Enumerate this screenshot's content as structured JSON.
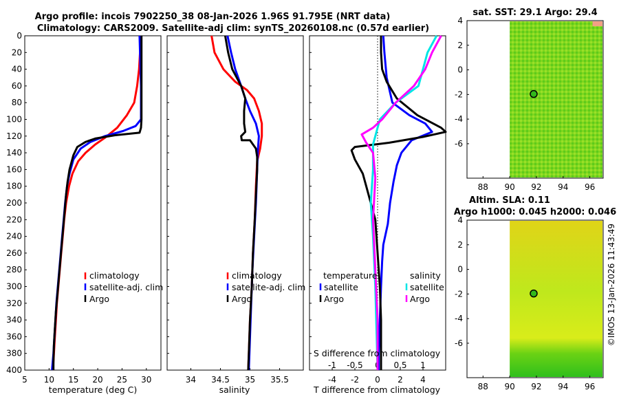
{
  "figure": {
    "title_line1": "Argo profile: incois 7902250_38 08-Jan-2026 1.96S 91.795E (NRT data)",
    "title_line2": "Climatology: CARS2009. Satellite-adj clim: synTS_20260108.nc (0.57d earlier)",
    "copyright": "©IMOS 13-Jan-2026 11:43:49",
    "colors": {
      "climatology": "#ff0000",
      "satellite": "#0000ff",
      "argo": "#000000",
      "satellite_s": "#00e5e5",
      "argo_s": "#ff00ff"
    }
  },
  "chart_data": [
    {
      "type": "line",
      "name": "temperature-profile",
      "xlabel": "temperature (deg C)",
      "ylabel": "",
      "xlim": [
        5,
        33
      ],
      "ylim": [
        400,
        0
      ],
      "xticks": [
        5,
        10,
        15,
        20,
        25,
        30
      ],
      "yticks": [
        0,
        20,
        40,
        60,
        80,
        100,
        120,
        140,
        160,
        180,
        200,
        220,
        240,
        260,
        280,
        300,
        320,
        340,
        360,
        380,
        400
      ],
      "legend": [
        "climatology",
        "satellite-adj. clim",
        "Argo"
      ],
      "series": [
        {
          "name": "climatology",
          "color": "#ff0000",
          "points": [
            [
              28.8,
              0
            ],
            [
              28.7,
              20
            ],
            [
              28.5,
              40
            ],
            [
              28.1,
              60
            ],
            [
              27.5,
              80
            ],
            [
              26.0,
              95
            ],
            [
              24.0,
              110
            ],
            [
              21.5,
              122
            ],
            [
              19.5,
              130
            ],
            [
              17.5,
              140
            ],
            [
              16.0,
              150
            ],
            [
              14.8,
              165
            ],
            [
              14.1,
              180
            ],
            [
              13.5,
              200
            ],
            [
              13.1,
              220
            ],
            [
              12.8,
              240
            ],
            [
              12.5,
              260
            ],
            [
              12.2,
              280
            ],
            [
              11.9,
              300
            ],
            [
              11.6,
              320
            ],
            [
              11.4,
              340
            ],
            [
              11.2,
              360
            ],
            [
              11.0,
              380
            ],
            [
              10.8,
              400
            ]
          ]
        },
        {
          "name": "satellite-adj. clim",
          "color": "#0000ff",
          "points": [
            [
              28.6,
              0
            ],
            [
              28.7,
              20
            ],
            [
              28.8,
              40
            ],
            [
              28.9,
              60
            ],
            [
              28.9,
              80
            ],
            [
              28.9,
              100
            ],
            [
              27.8,
              108
            ],
            [
              25.2,
              114
            ],
            [
              21.5,
              120
            ],
            [
              18.5,
              127
            ],
            [
              16.5,
              135
            ],
            [
              15.0,
              148
            ],
            [
              14.2,
              165
            ],
            [
              13.7,
              180
            ],
            [
              13.3,
              200
            ],
            [
              13.0,
              220
            ],
            [
              12.7,
              240
            ],
            [
              12.4,
              260
            ],
            [
              12.1,
              280
            ],
            [
              11.8,
              300
            ],
            [
              11.5,
              320
            ],
            [
              11.3,
              340
            ],
            [
              11.1,
              360
            ],
            [
              10.9,
              380
            ],
            [
              10.6,
              400
            ]
          ]
        },
        {
          "name": "Argo",
          "color": "#000000",
          "points": [
            [
              29.0,
              0
            ],
            [
              29.0,
              20
            ],
            [
              29.0,
              40
            ],
            [
              29.0,
              60
            ],
            [
              29.0,
              80
            ],
            [
              29.0,
              100
            ],
            [
              28.9,
              110
            ],
            [
              28.6,
              116
            ],
            [
              23.5,
              119
            ],
            [
              19.5,
              123
            ],
            [
              17.5,
              127
            ],
            [
              15.8,
              133
            ],
            [
              15.0,
              143
            ],
            [
              14.2,
              160
            ],
            [
              13.8,
              175
            ],
            [
              13.5,
              190
            ],
            [
              13.2,
              210
            ],
            [
              12.9,
              230
            ],
            [
              12.6,
              250
            ],
            [
              12.3,
              270
            ],
            [
              12.0,
              290
            ],
            [
              11.7,
              310
            ],
            [
              11.4,
              330
            ],
            [
              11.2,
              350
            ],
            [
              11.0,
              370
            ],
            [
              10.9,
              390
            ],
            [
              10.9,
              400
            ]
          ]
        }
      ]
    },
    {
      "type": "line",
      "name": "salinity-profile",
      "xlabel": "salinity",
      "xlim": [
        33.6,
        35.9
      ],
      "ylim": [
        400,
        0
      ],
      "xticks": [
        34,
        34.5,
        35,
        35.5
      ],
      "xticklabels": [
        "34",
        "34.5",
        "35",
        "35.5"
      ],
      "legend": [
        "climatology",
        "satellite-adj. clim",
        "Argo"
      ],
      "series": [
        {
          "name": "climatology",
          "color": "#ff0000",
          "points": [
            [
              34.35,
              0
            ],
            [
              34.4,
              20
            ],
            [
              34.55,
              40
            ],
            [
              34.75,
              55
            ],
            [
              34.95,
              65
            ],
            [
              35.07,
              75
            ],
            [
              35.15,
              90
            ],
            [
              35.2,
              105
            ],
            [
              35.2,
              120
            ],
            [
              35.17,
              135
            ],
            [
              35.12,
              150
            ],
            [
              35.1,
              180
            ],
            [
              35.08,
              220
            ],
            [
              35.05,
              260
            ],
            [
              35.03,
              300
            ],
            [
              35.0,
              340
            ],
            [
              34.98,
              380
            ],
            [
              34.97,
              400
            ]
          ]
        },
        {
          "name": "satellite-adj. clim",
          "color": "#0000ff",
          "points": [
            [
              34.62,
              0
            ],
            [
              34.68,
              20
            ],
            [
              34.75,
              40
            ],
            [
              34.85,
              60
            ],
            [
              34.92,
              75
            ],
            [
              35.0,
              90
            ],
            [
              35.1,
              105
            ],
            [
              35.15,
              120
            ],
            [
              35.13,
              140
            ],
            [
              35.12,
              160
            ],
            [
              35.1,
              200
            ],
            [
              35.07,
              240
            ],
            [
              35.04,
              280
            ],
            [
              35.02,
              320
            ],
            [
              35.0,
              360
            ],
            [
              34.98,
              400
            ]
          ]
        },
        {
          "name": "Argo",
          "color": "#000000",
          "points": [
            [
              34.58,
              0
            ],
            [
              34.63,
              20
            ],
            [
              34.7,
              40
            ],
            [
              34.85,
              60
            ],
            [
              34.92,
              75
            ],
            [
              34.9,
              90
            ],
            [
              34.9,
              105
            ],
            [
              34.92,
              115
            ],
            [
              34.85,
              120
            ],
            [
              34.86,
              125
            ],
            [
              35.0,
              125
            ],
            [
              35.1,
              135
            ],
            [
              35.12,
              145
            ],
            [
              35.12,
              160
            ],
            [
              35.1,
              190
            ],
            [
              35.08,
              220
            ],
            [
              35.05,
              260
            ],
            [
              35.03,
              300
            ],
            [
              35.0,
              340
            ],
            [
              34.98,
              380
            ],
            [
              34.97,
              400
            ]
          ]
        }
      ]
    },
    {
      "type": "line",
      "name": "difference-from-climatology",
      "xlabel": "T difference from climatology",
      "xlabel_top": "S difference from climatology",
      "xlim": [
        -6,
        6
      ],
      "ylim": [
        400,
        0
      ],
      "xticks": [
        -4,
        -2,
        0,
        2,
        4
      ],
      "s_ticks": [
        -1,
        -0.5,
        0,
        0.5,
        1
      ],
      "s_ticklabels": [
        "-1",
        "-0.5",
        "0",
        "0.5",
        "1"
      ],
      "legend_temperature_title": "temperature",
      "legend_salinity_title": "salinity",
      "legend_temperature": [
        "satellite",
        "Argo"
      ],
      "legend_salinity": [
        "satellite",
        "Argo"
      ],
      "series": [
        {
          "name": "temperature satellite",
          "color": "#0000ff",
          "points": [
            [
              0.5,
              0
            ],
            [
              0.6,
              20
            ],
            [
              0.8,
              50
            ],
            [
              1.3,
              80
            ],
            [
              2.8,
              95
            ],
            [
              4.2,
              105
            ],
            [
              4.8,
              115
            ],
            [
              3.0,
              125
            ],
            [
              2.1,
              140
            ],
            [
              1.7,
              155
            ],
            [
              1.4,
              175
            ],
            [
              1.1,
              200
            ],
            [
              0.9,
              225
            ],
            [
              0.5,
              250
            ],
            [
              0.4,
              270
            ],
            [
              0.3,
              300
            ],
            [
              0.2,
              340
            ],
            [
              0.1,
              380
            ],
            [
              0.1,
              400
            ]
          ]
        },
        {
          "name": "temperature Argo",
          "color": "#000000",
          "points": [
            [
              0.3,
              0
            ],
            [
              0.3,
              20
            ],
            [
              0.4,
              40
            ],
            [
              0.8,
              55
            ],
            [
              1.7,
              75
            ],
            [
              3.5,
              95
            ],
            [
              5.6,
              110
            ],
            [
              6.0,
              115
            ],
            [
              4.0,
              121
            ],
            [
              1.0,
              128
            ],
            [
              -2.0,
              133
            ],
            [
              -2.3,
              137
            ],
            [
              -2.0,
              148
            ],
            [
              -1.3,
              165
            ],
            [
              -1.0,
              180
            ],
            [
              -0.6,
              200
            ],
            [
              -0.2,
              220
            ],
            [
              0.0,
              260
            ],
            [
              0.2,
              300
            ],
            [
              0.3,
              340
            ],
            [
              0.3,
              380
            ],
            [
              0.3,
              400
            ]
          ]
        },
        {
          "name": "salinity satellite",
          "color": "#00e5e5",
          "points": [
            [
              1.3,
              0
            ],
            [
              1.1,
              20
            ],
            [
              1.0,
              40
            ],
            [
              0.9,
              60
            ],
            [
              0.4,
              80
            ],
            [
              0.05,
              100
            ],
            [
              -0.1,
              130
            ],
            [
              -0.1,
              160
            ],
            [
              -0.15,
              200
            ],
            [
              -0.1,
              240
            ],
            [
              -0.05,
              300
            ],
            [
              0.0,
              400
            ]
          ]
        },
        {
          "name": "salinity Argo",
          "color": "#ff00ff",
          "points": [
            [
              1.4,
              0
            ],
            [
              1.2,
              20
            ],
            [
              1.05,
              40
            ],
            [
              0.8,
              60
            ],
            [
              0.4,
              80
            ],
            [
              0.1,
              100
            ],
            [
              -0.1,
              110
            ],
            [
              -0.35,
              118
            ],
            [
              -0.25,
              128
            ],
            [
              -0.1,
              140
            ],
            [
              -0.05,
              170
            ],
            [
              -0.1,
              220
            ],
            [
              -0.05,
              280
            ],
            [
              0.0,
              340
            ],
            [
              0.0,
              400
            ]
          ]
        }
      ]
    },
    {
      "type": "heatmap",
      "name": "sst-map",
      "title": "sat. SST: 29.1 Argo: 29.4",
      "xlim": [
        86.8,
        97
      ],
      "ylim": [
        -8.8,
        4
      ],
      "xticks": [
        88,
        90,
        92,
        94,
        96
      ],
      "yticks": [
        -6,
        -4,
        -2,
        0,
        2,
        4
      ],
      "argo_position": [
        91.795,
        -1.96
      ]
    },
    {
      "type": "heatmap",
      "name": "sla-map",
      "title_line1": "Altim. SLA: 0.11",
      "title_line2": "Argo h1000: 0.045 h2000: 0.046",
      "xlim": [
        86.8,
        97
      ],
      "ylim": [
        -8.8,
        4
      ],
      "xticks": [
        88,
        90,
        92,
        94,
        96
      ],
      "yticks": [
        -6,
        -4,
        -2,
        0,
        2,
        4
      ],
      "argo_position": [
        91.795,
        -1.96
      ]
    }
  ]
}
